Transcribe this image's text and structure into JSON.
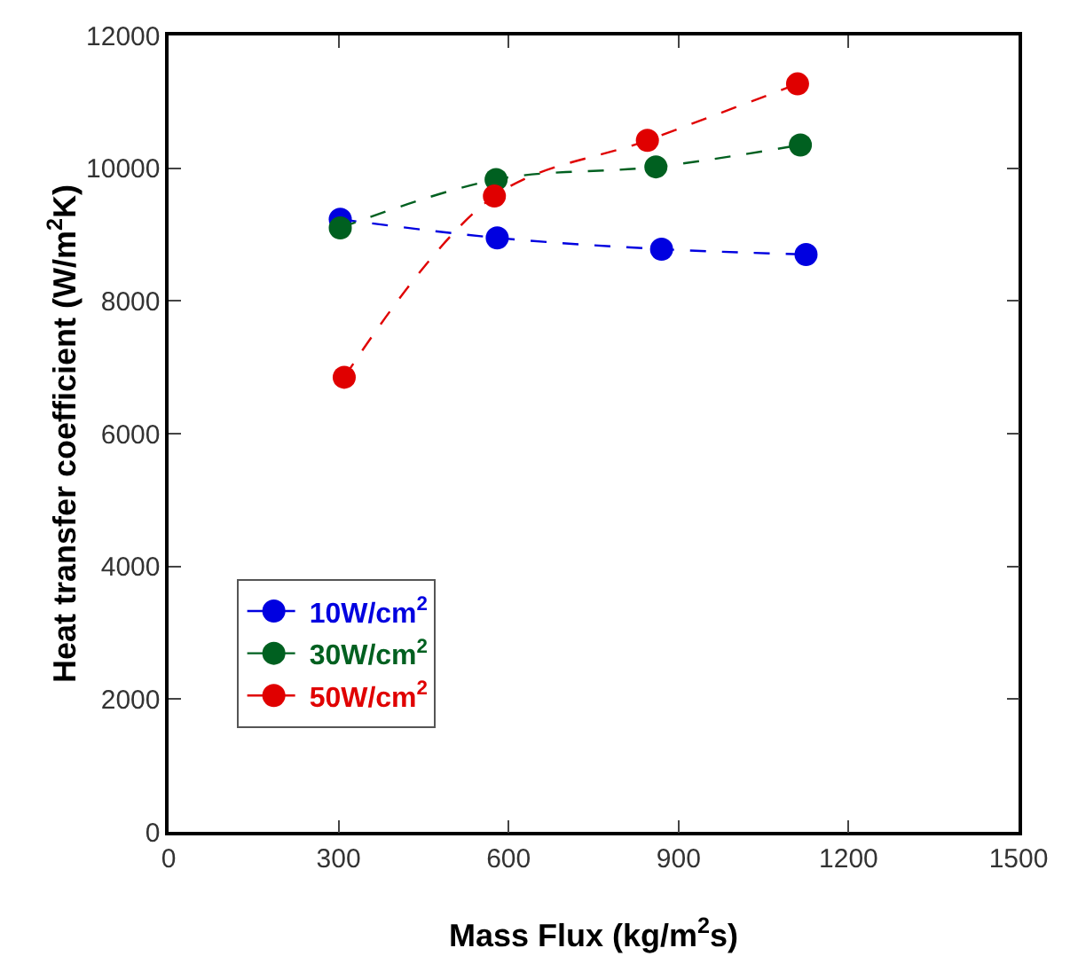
{
  "chart_data": {
    "type": "line",
    "xlabel": "Mass Flux (kg/m$^{2}$s)",
    "ylabel": "Heat transfer coefficient (W/m$^{2}$K)",
    "xlim": [
      0,
      1500
    ],
    "xticks": [
      0,
      300,
      600,
      900,
      1200,
      1500
    ],
    "ylim": [
      0,
      12000
    ],
    "yticks": [
      0,
      2000,
      4000,
      6000,
      8000,
      10000,
      12000
    ],
    "grid": false,
    "legend": "bottom left",
    "marker": "circle",
    "line_style": "dashed",
    "series": [
      {
        "name": "10W/cm$^{2}$",
        "color": "#0000e0",
        "x": [
          303,
          580,
          870,
          1125
        ],
        "values": [
          9230,
          8950,
          8780,
          8700
        ]
      },
      {
        "name": "30W/cm$^{2}$",
        "color": "#006020",
        "x": [
          303,
          578,
          860,
          1115
        ],
        "values": [
          9100,
          9830,
          10020,
          10350
        ]
      },
      {
        "name": "50W/cm$^{2}$",
        "color": "#e00000",
        "x": [
          310,
          575,
          845,
          1110
        ],
        "values": [
          6850,
          9580,
          10420,
          11270
        ]
      }
    ]
  }
}
